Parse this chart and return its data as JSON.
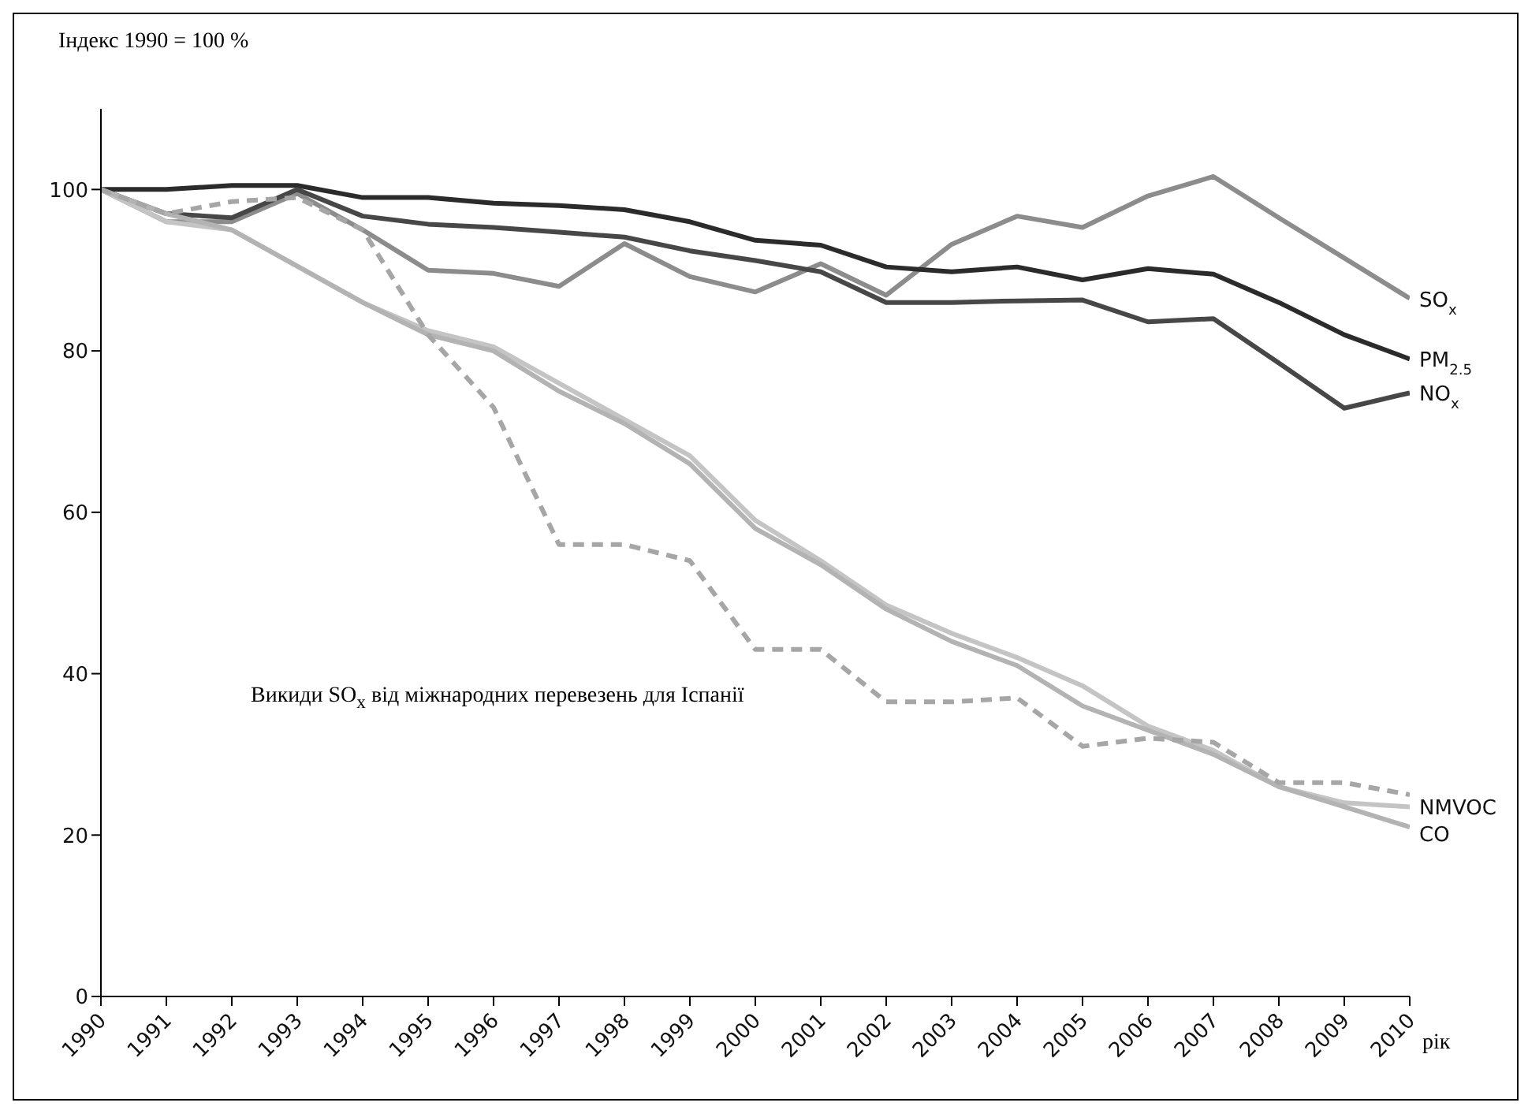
{
  "chart_data": {
    "type": "line",
    "ylabel": "Індекс 1990 = 100 %",
    "xlabel": "рік",
    "x": [
      1990,
      1991,
      1992,
      1993,
      1994,
      1995,
      1996,
      1997,
      1998,
      1999,
      2000,
      2001,
      2002,
      2003,
      2004,
      2005,
      2006,
      2007,
      2008,
      2009,
      2010
    ],
    "xlim": [
      1990,
      2010
    ],
    "xticks": [
      1990,
      1991,
      1992,
      1993,
      1994,
      1995,
      1996,
      1997,
      1998,
      1999,
      2000,
      2001,
      2002,
      2003,
      2004,
      2005,
      2006,
      2007,
      2008,
      2009,
      2010
    ],
    "ylim": [
      0,
      110
    ],
    "yticks": [
      0,
      20,
      40,
      60,
      80,
      100
    ],
    "marker": "none",
    "series": [
      {
        "name": "SO$_{x}$",
        "color": "#8c8c8c",
        "values": [
          100,
          96,
          96,
          99.5,
          95,
          90,
          89.6,
          88,
          93.3,
          89.2,
          87.3,
          90.8,
          86.9,
          93.2,
          96.7,
          95.3,
          99.2,
          101.6,
          96.5,
          91.5,
          86.5
        ]
      },
      {
        "name": "PM$_{2.5}$",
        "color": "#2b2b2b",
        "values": [
          100,
          100,
          100.5,
          100.5,
          99,
          99,
          98.3,
          98,
          97.5,
          96,
          93.7,
          93.1,
          90.4,
          89.8,
          90.4,
          88.8,
          90.2,
          89.5,
          86,
          82,
          79
        ]
      },
      {
        "name": "NO$_{x}$",
        "color": "#474747",
        "values": [
          100,
          97,
          96.5,
          100,
          96.7,
          95.7,
          95.3,
          94.7,
          94.1,
          92.4,
          91.2,
          89.8,
          86,
          86,
          86.2,
          86.3,
          83.6,
          84,
          78.5,
          72.9,
          74.8
        ]
      },
      {
        "name": "NMVOC",
        "color": "#c4c4c4",
        "values": [
          100,
          96,
          95,
          90.5,
          86,
          82.5,
          80.5,
          76,
          71.5,
          67,
          59,
          54,
          48.5,
          45,
          42,
          38.5,
          33.5,
          30.5,
          26,
          24,
          23.5
        ]
      },
      {
        "name": "CO",
        "color": "#b3b3b3",
        "values": [
          100,
          97,
          95,
          90.5,
          86,
          82,
          80,
          75,
          71,
          66,
          58,
          53.5,
          48,
          44,
          41,
          36,
          33,
          30,
          26,
          23.5,
          21
        ]
      },
      {
        "color": "#a6a6a6",
        "line_style": "dashed",
        "values": [
          100,
          97,
          98.5,
          99,
          95,
          82,
          73,
          56,
          56,
          54,
          43,
          43,
          36.5,
          36.5,
          37,
          31,
          32,
          31.5,
          26.5,
          26.5,
          25
        ]
      }
    ],
    "annotations": [
      "Викиди SO$_{x}$ від міжнародних перевезень для Іспанії"
    ]
  }
}
